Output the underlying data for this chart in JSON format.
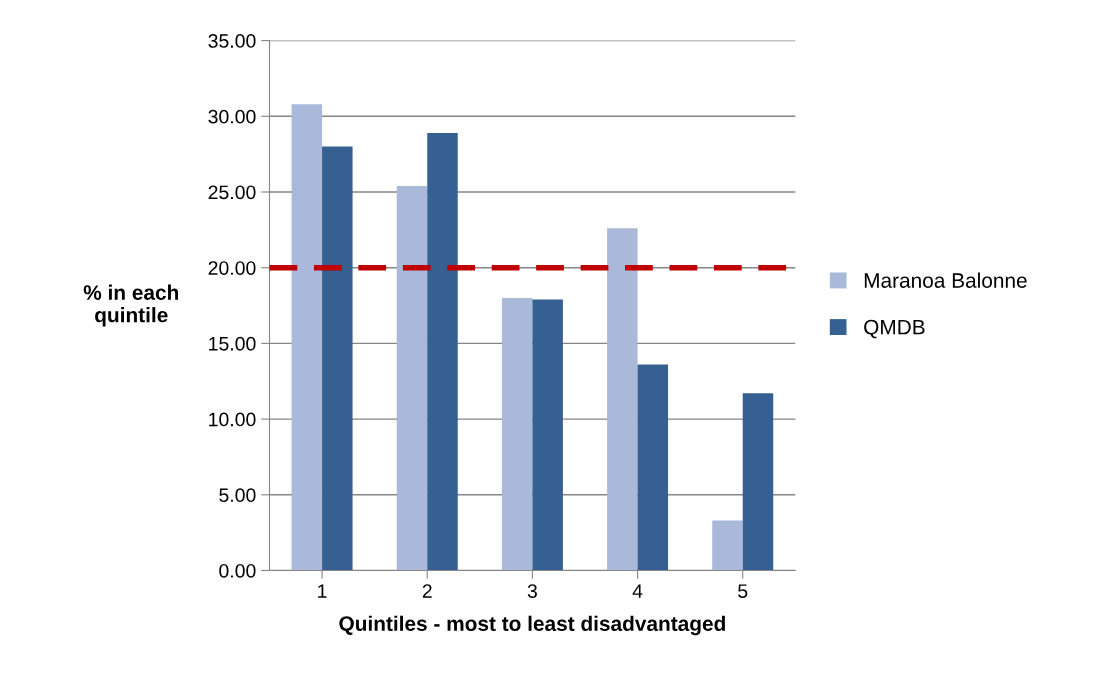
{
  "chart_data": {
    "type": "bar",
    "xlabel": "Quintiles - most to least disadvantaged",
    "ylabel": "% in each\nquintile",
    "categories": [
      "1",
      "2",
      "3",
      "4",
      "5"
    ],
    "series": [
      {
        "name": "Maranoa Balonne",
        "color": "#aab9d9",
        "values": [
          30.8,
          25.4,
          18.0,
          22.6,
          3.3
        ]
      },
      {
        "name": "QMDB",
        "color": "#366092",
        "values": [
          28.0,
          28.9,
          17.9,
          13.6,
          11.7
        ]
      }
    ],
    "ylim": [
      0,
      35
    ],
    "yticks": [
      {
        "value": 0,
        "label": "0.00"
      },
      {
        "value": 5,
        "label": "5.00"
      },
      {
        "value": 10,
        "label": "10.00"
      },
      {
        "value": 15,
        "label": "15.00"
      },
      {
        "value": 20,
        "label": "20.00"
      },
      {
        "value": 25,
        "label": "25.00"
      },
      {
        "value": 30,
        "label": "30.00"
      },
      {
        "value": 35,
        "label": "35.00"
      }
    ],
    "ref_lines": [
      {
        "axis": "y",
        "value": 20,
        "label": null,
        "color": "#c00000",
        "line_style": "dashed"
      }
    ],
    "grid": "y",
    "legend": "right"
  }
}
